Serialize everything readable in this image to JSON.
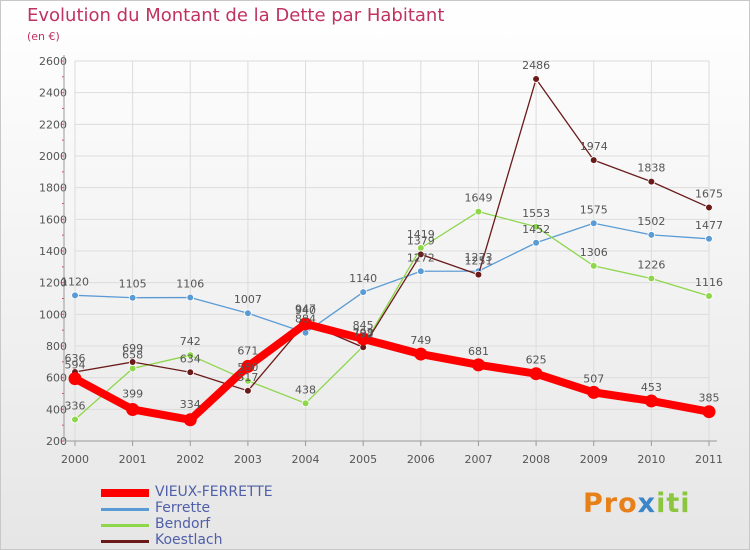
{
  "title": "Evolution du Montant de la Dette par Habitant",
  "subtitle": "(en €)",
  "brand": {
    "p1": "Pro",
    "p2": "x",
    "p3": "iti"
  },
  "chart_data": {
    "type": "line",
    "title": "Evolution du Montant de la Dette par Habitant",
    "ylabel": "(en €)",
    "ylim": [
      200,
      2600
    ],
    "yticks": [
      200,
      400,
      600,
      800,
      1000,
      1200,
      1400,
      1600,
      1800,
      2000,
      2200,
      2400,
      2600
    ],
    "x": [
      "2000",
      "2001",
      "2002",
      "2003",
      "2004",
      "2005",
      "2006",
      "2007",
      "2008",
      "2009",
      "2010",
      "2011"
    ],
    "grid": true,
    "legend_position": "bottom-left",
    "series": [
      {
        "name": "VIEUX-FERRETTE",
        "color": "#ff0000",
        "values": [
          594,
          399,
          334,
          671,
          940,
          845,
          749,
          681,
          625,
          507,
          453,
          385
        ]
      },
      {
        "name": "Ferrette",
        "color": "#5b9bd5",
        "values": [
          1120,
          1105,
          1106,
          1007,
          884,
          1140,
          1272,
          1273,
          1452,
          1575,
          1502,
          1477
        ]
      },
      {
        "name": "Bendorf",
        "color": "#8ed64a",
        "values": [
          336,
          658,
          742,
          580,
          438,
          798,
          1419,
          1649,
          1553,
          1306,
          1226,
          1116
        ]
      },
      {
        "name": "Koestlach",
        "color": "#6b1a1a",
        "values": [
          636,
          699,
          634,
          517,
          947,
          792,
          1379,
          1251,
          2486,
          1974,
          1838,
          1675
        ]
      }
    ]
  }
}
